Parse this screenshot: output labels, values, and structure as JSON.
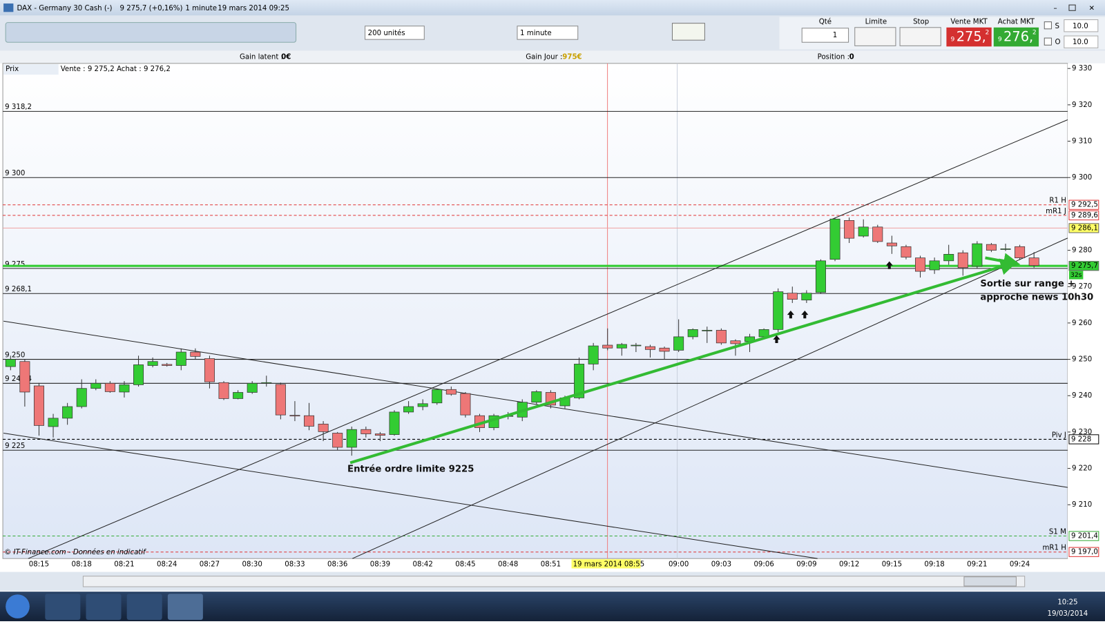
{
  "window": {
    "title": "DAX - Germany 30 Cash (-)",
    "quote": "9 275,7 (+0,16%)",
    "interval": "1 minute",
    "datetime": "19 mars 2014 09:25"
  },
  "toolbar": {
    "units": "200 unités",
    "interval": "1 minute",
    "qty_label": "Qté",
    "qty": "1",
    "limit_label": "Limite",
    "stop_label": "Stop",
    "sell_label": "Vente MKT",
    "sell_small": "9",
    "sell_big": "275,",
    "sell_sup": "2",
    "buy_label": "Achat MKT",
    "buy_small": "9",
    "buy_big": "276,",
    "buy_sup": "2",
    "s_label": "S",
    "o_label": "O",
    "s_value": "10.0",
    "o_value": "10.0"
  },
  "status": {
    "gain_latent_label": "Gain latent :",
    "gain_latent": "0€",
    "gain_jour_label": "Gain Jour :",
    "gain_jour": "975€",
    "position_label": "Position :",
    "position": "0"
  },
  "chart_data": {
    "type": "candlestick",
    "legend": "Prix",
    "info": "Vente : 9 275,2 Achat : 9 276,2",
    "categories": [
      null,
      null,
      "08:15",
      null,
      null,
      "08:18",
      null,
      null,
      "08:21",
      null,
      null,
      "08:24",
      null,
      null,
      "08:27",
      null,
      null,
      "08:30",
      null,
      null,
      "08:33",
      null,
      null,
      "08:36",
      null,
      null,
      "08:39",
      null,
      null,
      "08:42",
      null,
      null,
      "08:45",
      null,
      null,
      "08:48",
      null,
      null,
      "08:51",
      null,
      null,
      null,
      null,
      null,
      null,
      null,
      null,
      "09:00",
      null,
      null,
      "09:03",
      null,
      null,
      "09:06",
      null,
      null,
      "09:09",
      null,
      null,
      "09:12",
      null,
      null,
      "09:15",
      null,
      null,
      "09:18",
      null,
      null,
      "09:21",
      null,
      null,
      "09:24",
      null
    ],
    "open": [
      9248,
      9249.4,
      9242.7,
      9231.5,
      9233.8,
      9237,
      9242,
      9243.4,
      9241,
      9243,
      9248.3,
      9248.6,
      9248.3,
      9252,
      9250.2,
      9243.6,
      9239.2,
      9240.9,
      9243.4,
      9243.1,
      9234.6,
      9234.5,
      9232.2,
      9229.7,
      9225.8,
      9230.7,
      9229.5,
      9229.3,
      9235.5,
      9237,
      9238,
      9241.7,
      9240.6,
      9234.5,
      9231.2,
      9234.3,
      9234.1,
      9238.2,
      9240.9,
      9237.2,
      9239.4,
      9248.7,
      9253.9,
      9253.1,
      9253.9,
      9253.5,
      9253.1,
      9252.5,
      9256.2,
      9258,
      9258,
      9255.1,
      9254.9,
      9256.2,
      9258.2,
      9268.2,
      9266.3,
      9268.4,
      9277.5,
      9288.2,
      9283.9,
      9286.4,
      9282,
      9281,
      9277.9,
      9274.6,
      9277.1,
      9279.3,
      9275.6,
      9281.6,
      9280.4,
      9281,
      9277.9
    ],
    "high": [
      9251,
      9250,
      9243.5,
      9235,
      9238,
      9244.5,
      9244.5,
      9244,
      9244,
      9251,
      9250.5,
      9249,
      9253,
      9253,
      9251,
      9244,
      9241.5,
      9244,
      9245.5,
      9243.6,
      9238.5,
      9238,
      9233,
      9230,
      9231.5,
      9231.5,
      9230,
      9236,
      9238.5,
      9239,
      9242,
      9242.5,
      9241,
      9235,
      9235,
      9235.5,
      9239,
      9241.5,
      9241.5,
      9240,
      9250.5,
      9254.5,
      9258.5,
      9254.5,
      9254.5,
      9254,
      9253.5,
      9261,
      9258.5,
      9259,
      9258.5,
      9255.5,
      9257,
      9258.5,
      9269.5,
      9270,
      9269,
      9277.5,
      9289,
      9289,
      9288.5,
      9287,
      9284,
      9281.5,
      9278.5,
      9278,
      9281.5,
      9280,
      9282.5,
      9282,
      9281.8,
      9281.5,
      9279.5
    ],
    "low": [
      9247,
      9237,
      9229,
      9228.5,
      9232,
      9236.5,
      9241.5,
      9240.8,
      9239.5,
      9242.5,
      9247.8,
      9248,
      9247,
      9250,
      9242,
      9238.8,
      9239,
      9240.5,
      9242.5,
      9233.5,
      9233,
      9230.5,
      9227.5,
      9225,
      9223.5,
      9228.5,
      9227.5,
      9229,
      9235,
      9236,
      9237.5,
      9240,
      9234,
      9230,
      9230.5,
      9233.5,
      9233,
      9237.5,
      9236.5,
      9236.5,
      9239,
      9247,
      9252.5,
      9251,
      9252,
      9250.5,
      9250,
      9252,
      9255.5,
      9254.5,
      9254,
      9251,
      9252,
      9255.5,
      9257.5,
      9265.5,
      9265.5,
      9268,
      9277,
      9282,
      9283.5,
      9282,
      9279,
      9277.5,
      9272.5,
      9273.5,
      9276,
      9273,
      9275,
      9279.5,
      9279.8,
      9277.5,
      9275.2
    ],
    "close": [
      9250,
      9241,
      9231.8,
      9233.8,
      9237,
      9242,
      9243.4,
      9241.1,
      9243,
      9248.5,
      9249.4,
      9248.3,
      9252,
      9250.8,
      9243.8,
      9239.2,
      9240.9,
      9243.4,
      9243.6,
      9234.7,
      9234.4,
      9231.6,
      9230.1,
      9225.8,
      9230.7,
      9229.5,
      9229.1,
      9235.5,
      9237,
      9237.8,
      9241.7,
      9240.4,
      9234.7,
      9231.2,
      9234.5,
      9234.5,
      9238.2,
      9241.1,
      9237.4,
      9239.4,
      9248.7,
      9253.7,
      9253.1,
      9254.1,
      9253.9,
      9252.7,
      9252.2,
      9256.2,
      9258.2,
      9258,
      9254.5,
      9254.3,
      9256.2,
      9258.2,
      9268.6,
      9266.5,
      9268.2,
      9277.1,
      9288.6,
      9283.3,
      9286.4,
      9282.4,
      9281.2,
      9278.1,
      9274.2,
      9277.1,
      9278.9,
      9275.2,
      9281.8,
      9280,
      9280.4,
      9277.9,
      9275.8
    ],
    "up_color": "#33cc33",
    "down_color": "#ee7777",
    "ylim": [
      9195.2,
      9331.4
    ],
    "yticks": [
      {
        "value": 9210,
        "label": "9 210"
      },
      {
        "value": 9220,
        "label": "9 220"
      },
      {
        "value": 9230,
        "label": "9 230"
      },
      {
        "value": 9240,
        "label": "9 240"
      },
      {
        "value": 9250,
        "label": "9 250"
      },
      {
        "value": 9260,
        "label": "9 260"
      },
      {
        "value": 9270,
        "label": "9 270"
      },
      {
        "value": 9280,
        "label": "9 280"
      },
      {
        "value": 9300,
        "label": "9 300"
      },
      {
        "value": 9310,
        "label": "9 310"
      },
      {
        "value": 9320,
        "label": "9 320"
      },
      {
        "value": 9330,
        "label": "9 330"
      }
    ],
    "levels": [
      {
        "value": 9318.2,
        "label": "9 318,2"
      },
      {
        "value": 9300,
        "label": "9 300"
      },
      {
        "value": 9275,
        "label": "9 275"
      },
      {
        "value": 9268.1,
        "label": "9 268,1"
      },
      {
        "value": 9250,
        "label": "9 250"
      },
      {
        "value": 9243.4,
        "label": "9 243,4"
      },
      {
        "value": 9225,
        "label": "9 225"
      }
    ],
    "right_levels": [
      {
        "name": "R1 H",
        "value": 9292.5,
        "label": "9 292,5",
        "color": "#e03030",
        "dashed": true
      },
      {
        "name": "mR1 J",
        "value": 9289.6,
        "label": "9 289,6",
        "color": "#e03030",
        "dashed": true
      },
      {
        "value": 9286.1,
        "label": "9 286,1",
        "color": "#f0a0a0",
        "box": "#ffff66",
        "dashed": false
      },
      {
        "value": 9275.7,
        "label": "9 275,7",
        "color": "#33cc33",
        "box": "#33cc33",
        "dashed": false
      },
      {
        "name": "Piv J",
        "value": 9228,
        "label": "9 228",
        "color": "#000000",
        "dashed": true
      },
      {
        "name": "S1 M",
        "value": 9201.4,
        "label": "9 201,4",
        "color": "#33aa33",
        "dashed": true
      },
      {
        "name": "mR1 H",
        "value": 9197.0,
        "label": "9 197,0",
        "color": "#e03030",
        "dashed": true
      }
    ],
    "countdown": "32s",
    "cursor_time": "19 mars 2014 08:55",
    "annotations": [
      "Entrée ordre limite 9225",
      "Sortie sur range +",
      "approche news 10h30"
    ],
    "footer": "© IT-Finance.com - Données en indicatif"
  },
  "taskbar": {
    "time": "10:25",
    "date": "19/03/2014"
  }
}
